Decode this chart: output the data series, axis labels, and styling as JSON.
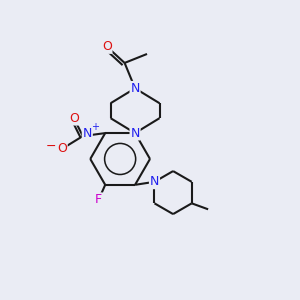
{
  "bg_color": "#eaecf4",
  "bond_color": "#1a1a1a",
  "N_color": "#2020ee",
  "O_color": "#dd1111",
  "F_color": "#cc00cc",
  "line_width": 1.5,
  "font_size": 9,
  "fig_size": [
    3.0,
    3.0
  ],
  "dpi": 100,
  "xlim": [
    0,
    10
  ],
  "ylim": [
    0,
    10
  ]
}
